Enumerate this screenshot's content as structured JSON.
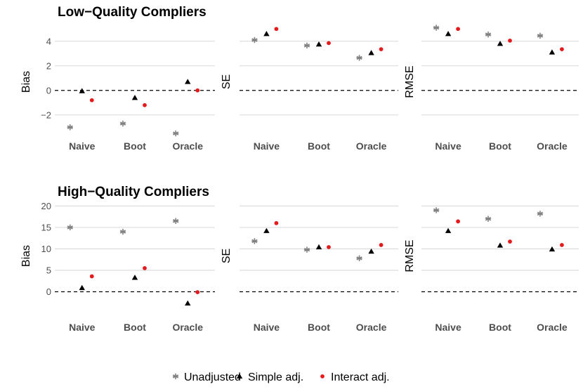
{
  "colors": {
    "unadjusted": "#808080",
    "simple": "#000000",
    "interact": "#e41a1c",
    "grid": "#d9d9d9",
    "zero_line": "#000000"
  },
  "legend": {
    "position": "bottom",
    "items": [
      {
        "key": "unadjusted",
        "label": "Unadjusted",
        "shape": "asterisk"
      },
      {
        "key": "simple",
        "label": "Simple adj.",
        "shape": "triangle"
      },
      {
        "key": "interact",
        "label": "Interact adj.",
        "shape": "circle"
      }
    ]
  },
  "chart_data": [
    {
      "type": "scatter",
      "title": "Low−Quality Compliers",
      "ylabel": "Bias",
      "categories": [
        "Naive",
        "Boot",
        "Oracle"
      ],
      "ylim": [
        -3.9,
        5.3
      ],
      "yticks": [
        -2,
        0,
        2,
        4
      ],
      "ytick_labels": [
        "−2",
        "0",
        "2",
        "4"
      ],
      "zero_line": true,
      "series": [
        {
          "name": "Unadjusted",
          "values": [
            -3.0,
            -2.7,
            -3.5
          ]
        },
        {
          "name": "Simple adj.",
          "values": [
            -0.05,
            -0.6,
            0.7
          ]
        },
        {
          "name": "Interact adj.",
          "values": [
            -0.8,
            -1.2,
            0.0
          ]
        }
      ]
    },
    {
      "type": "scatter",
      "title": "",
      "ylabel": "SE",
      "categories": [
        "Naive",
        "Boot",
        "Oracle"
      ],
      "ylim": [
        -3.9,
        5.3
      ],
      "yticks": [
        -2,
        0,
        2,
        4
      ],
      "zero_line": true,
      "series": [
        {
          "name": "Unadjusted",
          "values": [
            4.1,
            3.65,
            2.65
          ]
        },
        {
          "name": "Simple adj.",
          "values": [
            4.6,
            3.75,
            3.05
          ]
        },
        {
          "name": "Interact adj.",
          "values": [
            5.0,
            3.85,
            3.35
          ]
        }
      ]
    },
    {
      "type": "scatter",
      "title": "",
      "ylabel": "RMSE",
      "categories": [
        "Naive",
        "Boot",
        "Oracle"
      ],
      "ylim": [
        -3.9,
        5.3
      ],
      "yticks": [
        -2,
        0,
        2,
        4
      ],
      "zero_line": true,
      "series": [
        {
          "name": "Unadjusted",
          "values": [
            5.1,
            4.55,
            4.45
          ]
        },
        {
          "name": "Simple adj.",
          "values": [
            4.6,
            3.8,
            3.1
          ]
        },
        {
          "name": "Interact adj.",
          "values": [
            5.0,
            4.05,
            3.35
          ]
        }
      ]
    },
    {
      "type": "scatter",
      "title": "High−Quality Compliers",
      "ylabel": "Bias",
      "categories": [
        "Naive",
        "Boot",
        "Oracle"
      ],
      "ylim": [
        -4.5,
        21.2
      ],
      "yticks": [
        0,
        5,
        10,
        15,
        20
      ],
      "ytick_labels": [
        "0",
        "5",
        "10",
        "15",
        "20"
      ],
      "zero_line": true,
      "series": [
        {
          "name": "Unadjusted",
          "values": [
            15.0,
            14.0,
            16.5
          ]
        },
        {
          "name": "Simple adj.",
          "values": [
            0.9,
            3.3,
            -2.7
          ]
        },
        {
          "name": "Interact adj.",
          "values": [
            3.6,
            5.5,
            -0.1
          ]
        }
      ]
    },
    {
      "type": "scatter",
      "title": "",
      "ylabel": "SE",
      "categories": [
        "Naive",
        "Boot",
        "Oracle"
      ],
      "ylim": [
        -4.5,
        21.2
      ],
      "yticks": [
        0,
        5,
        10,
        15,
        20
      ],
      "zero_line": true,
      "series": [
        {
          "name": "Unadjusted",
          "values": [
            11.8,
            9.8,
            7.8
          ]
        },
        {
          "name": "Simple adj.",
          "values": [
            14.2,
            10.4,
            9.4
          ]
        },
        {
          "name": "Interact adj.",
          "values": [
            16.0,
            10.4,
            10.9
          ]
        }
      ]
    },
    {
      "type": "scatter",
      "title": "",
      "ylabel": "RMSE",
      "categories": [
        "Naive",
        "Boot",
        "Oracle"
      ],
      "ylim": [
        -4.5,
        21.2
      ],
      "yticks": [
        0,
        5,
        10,
        15,
        20
      ],
      "zero_line": true,
      "series": [
        {
          "name": "Unadjusted",
          "values": [
            19.0,
            17.0,
            18.2
          ]
        },
        {
          "name": "Simple adj.",
          "values": [
            14.2,
            10.8,
            9.9
          ]
        },
        {
          "name": "Interact adj.",
          "values": [
            16.4,
            11.7,
            10.9
          ]
        }
      ]
    }
  ]
}
